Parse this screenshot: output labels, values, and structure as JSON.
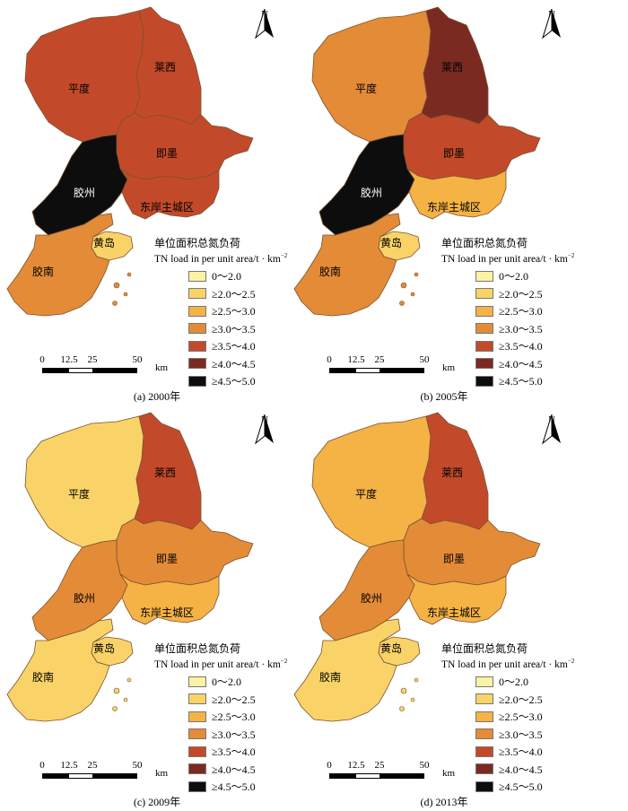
{
  "shared": {
    "legend_title_cn": "单位面积总氮负荷",
    "legend_title_en": "TN load in per unit area/t · km",
    "legend_title_en_sup": "−2",
    "north_label": "N",
    "scale_labels": [
      "0",
      "12.5",
      "25",
      "50"
    ],
    "scale_unit": "km",
    "legend_items": [
      {
        "label": "0～2.0",
        "color": "#fbf2a3"
      },
      {
        "label": "≥2.0～2.5",
        "color": "#f9d367"
      },
      {
        "label": "≥2.5～3.0",
        "color": "#f5b245"
      },
      {
        "label": "≥3.0～3.5",
        "color": "#e48b37"
      },
      {
        "label": "≥3.5～4.0",
        "color": "#c24a2a"
      },
      {
        "label": "≥4.0～4.5",
        "color": "#7b2a22"
      },
      {
        "label": "≥4.5～5.0",
        "color": "#0d0d0d"
      }
    ],
    "region_names": {
      "pingdu": "平度",
      "laixi": "莱西",
      "jimo": "即墨",
      "jiaozhou": "胶州",
      "dongan": "东岸主城区",
      "huangdao": "黄岛",
      "jiaonan": "胶南"
    }
  },
  "panels": [
    {
      "caption": "(a) 2000年",
      "class_index": {
        "pingdu": 4,
        "laixi": 4,
        "jimo": 4,
        "jiaozhou": 6,
        "dongan": 4,
        "huangdao": 1,
        "jiaonan": 3
      }
    },
    {
      "caption": "(b) 2005年",
      "class_index": {
        "pingdu": 3,
        "laixi": 5,
        "jimo": 4,
        "jiaozhou": 6,
        "dongan": 2,
        "huangdao": 1,
        "jiaonan": 3
      }
    },
    {
      "caption": "(c) 2009年",
      "class_index": {
        "pingdu": 1,
        "laixi": 4,
        "jimo": 3,
        "jiaozhou": 3,
        "dongan": 2,
        "huangdao": 1,
        "jiaonan": 1
      }
    },
    {
      "caption": "(d) 2013年",
      "class_index": {
        "pingdu": 2,
        "laixi": 4,
        "jimo": 3,
        "jiaozhou": 3,
        "dongan": 2,
        "huangdao": 1,
        "jiaonan": 1
      }
    }
  ]
}
